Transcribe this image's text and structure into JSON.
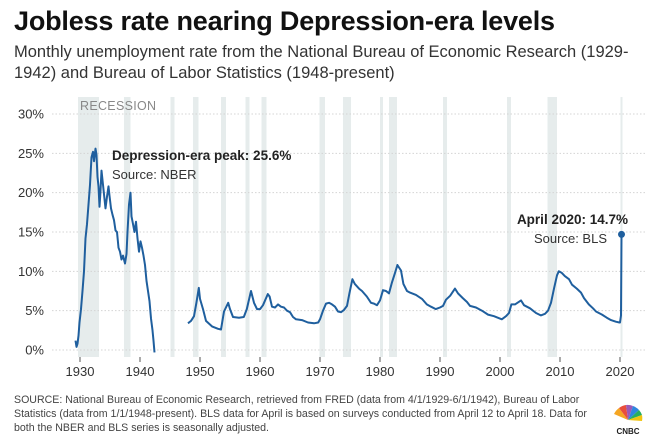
{
  "header": {
    "title": "Jobless rate nearing Depression-era levels",
    "subtitle": "Monthly unemployment rate from the National Bureau of Economic Research (1929-1942) and Bureau of Labor Statistics (1948-present)"
  },
  "footer": {
    "source": "SOURCE: National Bureau of Economic Research, retrieved from FRED (data from 4/1/1929-6/1/1942), Bureau of Labor Statistics (data from 1/1/1948-present). BLS data for April is based on surveys conducted from April 12 to April 18. Data for both the NBER and BLS series is seasonally adjusted.",
    "logo_text": "CNBC"
  },
  "colors": {
    "line": "#1f5f9e",
    "recession": "#e6ecec",
    "grid": "#d4d4d4",
    "axis_text": "#333333"
  },
  "chart_data": {
    "type": "line",
    "title": "Jobless rate nearing Depression-era levels",
    "xlim": [
      1926,
      2022
    ],
    "ylim": [
      0,
      30
    ],
    "x_ticks": [
      1930,
      1940,
      1950,
      1960,
      1970,
      1980,
      1990,
      2000,
      2010,
      2020
    ],
    "y_ticks": [
      0,
      5,
      10,
      15,
      20,
      25,
      30
    ],
    "y_tick_labels": [
      "0%",
      "5%",
      "10%",
      "15%",
      "20%",
      "25%",
      "30%"
    ],
    "grid": "horizontal",
    "recession_label": "RECESSION",
    "recessions": [
      [
        1929.67,
        1933.17
      ],
      [
        1937.33,
        1938.42
      ],
      [
        1945.08,
        1945.75
      ],
      [
        1948.83,
        1949.75
      ],
      [
        1953.5,
        1954.33
      ],
      [
        1957.58,
        1958.25
      ],
      [
        1960.25,
        1961.08
      ],
      [
        1969.92,
        1970.83
      ],
      [
        1973.83,
        1975.17
      ],
      [
        1980.0,
        1980.5
      ],
      [
        1981.5,
        1982.83
      ],
      [
        1990.5,
        1991.17
      ],
      [
        2001.17,
        2001.83
      ],
      [
        2007.92,
        2009.5
      ],
      [
        2020.08,
        2020.33
      ]
    ],
    "series": [
      {
        "values": [
          [
            1929.25,
            1.2
          ],
          [
            1929.42,
            0.4
          ],
          [
            1929.58,
            0.8
          ],
          [
            1929.75,
            1.8
          ],
          [
            1929.92,
            3.5
          ],
          [
            1930.17,
            5.2
          ],
          [
            1930.42,
            7.5
          ],
          [
            1930.67,
            10.0
          ],
          [
            1930.92,
            14.2
          ],
          [
            1931.17,
            16.0
          ],
          [
            1931.42,
            18.5
          ],
          [
            1931.67,
            21.0
          ],
          [
            1931.92,
            24.5
          ],
          [
            1932.17,
            25.2
          ],
          [
            1932.33,
            24.0
          ],
          [
            1932.58,
            25.6
          ],
          [
            1932.75,
            24.8
          ],
          [
            1932.92,
            22.0
          ],
          [
            1933.08,
            20.8
          ],
          [
            1933.25,
            18.2
          ],
          [
            1933.42,
            20.2
          ],
          [
            1933.58,
            22.8
          ],
          [
            1933.83,
            21.0
          ],
          [
            1934.08,
            19.2
          ],
          [
            1934.25,
            18.0
          ],
          [
            1934.5,
            19.5
          ],
          [
            1934.75,
            20.8
          ],
          [
            1934.92,
            19.6
          ],
          [
            1935.17,
            18.0
          ],
          [
            1935.42,
            17.2
          ],
          [
            1935.67,
            16.5
          ],
          [
            1935.92,
            15.2
          ],
          [
            1936.17,
            15.0
          ],
          [
            1936.42,
            13.0
          ],
          [
            1936.67,
            12.5
          ],
          [
            1936.92,
            11.5
          ],
          [
            1937.17,
            12.0
          ],
          [
            1937.5,
            11.0
          ],
          [
            1937.75,
            12.2
          ],
          [
            1937.92,
            15.0
          ],
          [
            1938.17,
            18.5
          ],
          [
            1938.42,
            20.0
          ],
          [
            1938.58,
            17.0
          ],
          [
            1938.83,
            16.0
          ],
          [
            1939.08,
            15.0
          ],
          [
            1939.33,
            16.3
          ],
          [
            1939.58,
            14.2
          ],
          [
            1939.83,
            12.5
          ],
          [
            1940.08,
            13.8
          ],
          [
            1940.33,
            13.0
          ],
          [
            1940.58,
            12.0
          ],
          [
            1940.83,
            10.8
          ],
          [
            1941.08,
            8.8
          ],
          [
            1941.33,
            7.5
          ],
          [
            1941.58,
            6.2
          ],
          [
            1941.83,
            4.0
          ],
          [
            1942.08,
            2.5
          ],
          [
            1942.25,
            1.2
          ],
          [
            1942.42,
            -0.3
          ]
        ]
      },
      {
        "values": [
          [
            1948.0,
            3.4
          ],
          [
            1948.5,
            3.7
          ],
          [
            1949.0,
            4.3
          ],
          [
            1949.4,
            6.0
          ],
          [
            1949.8,
            7.9
          ],
          [
            1950.0,
            6.5
          ],
          [
            1950.5,
            5.2
          ],
          [
            1951.0,
            3.7
          ],
          [
            1952.0,
            3.0
          ],
          [
            1953.0,
            2.7
          ],
          [
            1953.5,
            2.6
          ],
          [
            1954.0,
            4.9
          ],
          [
            1954.7,
            6.0
          ],
          [
            1955.0,
            5.2
          ],
          [
            1955.5,
            4.2
          ],
          [
            1956.5,
            4.1
          ],
          [
            1957.3,
            4.2
          ],
          [
            1957.8,
            5.2
          ],
          [
            1958.5,
            7.5
          ],
          [
            1959.0,
            6.0
          ],
          [
            1959.5,
            5.2
          ],
          [
            1960.0,
            5.2
          ],
          [
            1960.5,
            5.7
          ],
          [
            1961.3,
            7.1
          ],
          [
            1961.6,
            6.8
          ],
          [
            1962.0,
            5.5
          ],
          [
            1962.5,
            5.4
          ],
          [
            1963.0,
            5.8
          ],
          [
            1963.5,
            5.5
          ],
          [
            1964.0,
            5.4
          ],
          [
            1964.5,
            5.0
          ],
          [
            1965.0,
            4.8
          ],
          [
            1965.5,
            4.2
          ],
          [
            1966.0,
            3.9
          ],
          [
            1967.0,
            3.8
          ],
          [
            1968.0,
            3.5
          ],
          [
            1969.0,
            3.4
          ],
          [
            1969.7,
            3.5
          ],
          [
            1970.0,
            3.9
          ],
          [
            1970.5,
            5.0
          ],
          [
            1971.0,
            5.9
          ],
          [
            1971.5,
            6.0
          ],
          [
            1972.0,
            5.8
          ],
          [
            1972.5,
            5.5
          ],
          [
            1973.0,
            4.9
          ],
          [
            1973.5,
            4.8
          ],
          [
            1974.0,
            5.1
          ],
          [
            1974.5,
            5.6
          ],
          [
            1974.9,
            7.2
          ],
          [
            1975.4,
            9.0
          ],
          [
            1975.8,
            8.4
          ],
          [
            1976.5,
            7.8
          ],
          [
            1977.0,
            7.5
          ],
          [
            1977.8,
            6.8
          ],
          [
            1978.5,
            6.0
          ],
          [
            1979.0,
            5.9
          ],
          [
            1979.5,
            5.7
          ],
          [
            1980.0,
            6.3
          ],
          [
            1980.5,
            7.6
          ],
          [
            1981.0,
            7.5
          ],
          [
            1981.5,
            7.2
          ],
          [
            1982.0,
            8.6
          ],
          [
            1982.5,
            9.8
          ],
          [
            1982.9,
            10.8
          ],
          [
            1983.5,
            10.1
          ],
          [
            1983.9,
            8.4
          ],
          [
            1984.5,
            7.5
          ],
          [
            1985.0,
            7.3
          ],
          [
            1986.0,
            7.0
          ],
          [
            1987.0,
            6.5
          ],
          [
            1987.8,
            5.8
          ],
          [
            1988.5,
            5.5
          ],
          [
            1989.3,
            5.2
          ],
          [
            1990.0,
            5.4
          ],
          [
            1990.5,
            5.6
          ],
          [
            1991.0,
            6.4
          ],
          [
            1991.7,
            6.9
          ],
          [
            1992.5,
            7.8
          ],
          [
            1993.0,
            7.2
          ],
          [
            1993.8,
            6.6
          ],
          [
            1994.5,
            6.1
          ],
          [
            1995.0,
            5.6
          ],
          [
            1996.0,
            5.4
          ],
          [
            1997.0,
            5.0
          ],
          [
            1998.0,
            4.5
          ],
          [
            1999.0,
            4.3
          ],
          [
            2000.3,
            3.9
          ],
          [
            2001.0,
            4.3
          ],
          [
            2001.5,
            4.7
          ],
          [
            2001.9,
            5.8
          ],
          [
            2002.5,
            5.8
          ],
          [
            2003.5,
            6.3
          ],
          [
            2004.0,
            5.7
          ],
          [
            2005.0,
            5.3
          ],
          [
            2006.0,
            4.7
          ],
          [
            2006.8,
            4.4
          ],
          [
            2007.5,
            4.6
          ],
          [
            2008.0,
            5.0
          ],
          [
            2008.5,
            6.0
          ],
          [
            2009.0,
            7.8
          ],
          [
            2009.5,
            9.5
          ],
          [
            2009.8,
            10.0
          ],
          [
            2010.3,
            9.8
          ],
          [
            2010.8,
            9.4
          ],
          [
            2011.5,
            9.0
          ],
          [
            2012.0,
            8.3
          ],
          [
            2012.8,
            7.8
          ],
          [
            2013.5,
            7.3
          ],
          [
            2014.0,
            6.6
          ],
          [
            2014.8,
            5.8
          ],
          [
            2015.5,
            5.3
          ],
          [
            2016.0,
            4.9
          ],
          [
            2017.0,
            4.5
          ],
          [
            2017.8,
            4.1
          ],
          [
            2018.5,
            3.8
          ],
          [
            2019.3,
            3.6
          ],
          [
            2019.9,
            3.5
          ],
          [
            2020.0,
            3.5
          ],
          [
            2020.17,
            4.4
          ],
          [
            2020.25,
            14.7
          ]
        ]
      }
    ],
    "annotations": [
      {
        "id": "depression",
        "title": "Depression-era peak: 25.6%",
        "subtitle": "Source: NBER",
        "x": 1932.58,
        "y": 25.6
      },
      {
        "id": "april2020",
        "title": "April 2020: 14.7%",
        "subtitle": "Source: BLS",
        "x": 2020.25,
        "y": 14.7
      }
    ]
  }
}
